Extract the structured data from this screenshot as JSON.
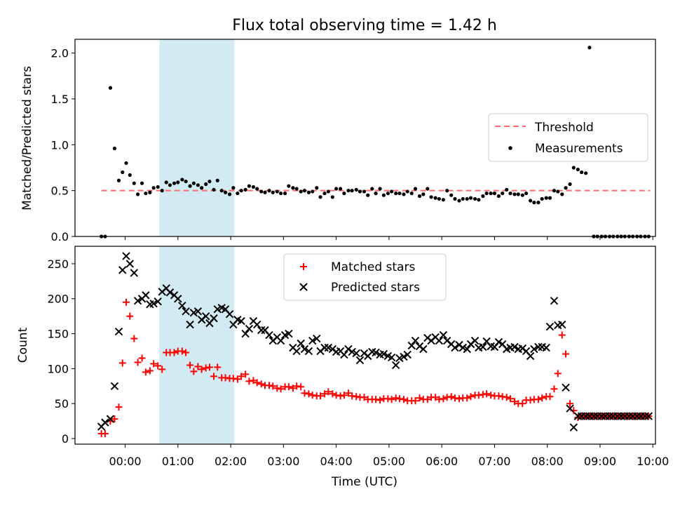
{
  "chart_data": [
    {
      "type": "scatter",
      "title": "Flux total observing time = 1.42 h",
      "xlabel": "",
      "ylabel": "Matched/Predicted stars",
      "xlim_hours": [
        -0.95,
        10.05
      ],
      "ylim": [
        0,
        2.15
      ],
      "yticks": [
        0.0,
        0.5,
        1.0,
        1.5,
        2.0
      ],
      "ytick_labels": [
        "0.0",
        "0.5",
        "1.0",
        "1.5",
        "2.0"
      ],
      "shaded_interval_hours": [
        0.65,
        2.07
      ],
      "shade_color": "#add8e6",
      "threshold": {
        "y": 0.5,
        "x_range_hours": [
          -0.45,
          9.95
        ],
        "color": "#ff6b6b"
      },
      "legend": {
        "position": "center-right",
        "entries": [
          "Threshold",
          "Measurements"
        ]
      },
      "series": [
        {
          "name": "Measurements",
          "color": "#000000",
          "x_hours": [
            -0.45,
            -0.38,
            -0.28,
            -0.2,
            -0.12,
            -0.05,
            0.02,
            0.09,
            0.17,
            0.24,
            0.32,
            0.39,
            0.47,
            0.54,
            0.62,
            0.7,
            0.78,
            0.85,
            0.93,
            1.0,
            1.08,
            1.15,
            1.23,
            1.3,
            1.38,
            1.45,
            1.53,
            1.6,
            1.68,
            1.75,
            1.83,
            1.9,
            1.98,
            2.05,
            2.13,
            2.2,
            2.28,
            2.35,
            2.43,
            2.5,
            2.58,
            2.65,
            2.73,
            2.8,
            2.88,
            2.95,
            3.03,
            3.1,
            3.18,
            3.25,
            3.33,
            3.4,
            3.48,
            3.55,
            3.63,
            3.7,
            3.78,
            3.85,
            3.93,
            4.0,
            4.08,
            4.15,
            4.23,
            4.3,
            4.38,
            4.45,
            4.53,
            4.6,
            4.68,
            4.75,
            4.83,
            4.9,
            4.98,
            5.05,
            5.13,
            5.2,
            5.28,
            5.35,
            5.43,
            5.5,
            5.58,
            5.65,
            5.73,
            5.8,
            5.88,
            5.95,
            6.03,
            6.1,
            6.18,
            6.25,
            6.33,
            6.4,
            6.48,
            6.55,
            6.63,
            6.7,
            6.78,
            6.85,
            6.93,
            7.0,
            7.08,
            7.15,
            7.23,
            7.3,
            7.38,
            7.45,
            7.53,
            7.6,
            7.68,
            7.75,
            7.83,
            7.9,
            7.98,
            8.05,
            8.13,
            8.2,
            8.28,
            8.35,
            8.43,
            8.5,
            8.58,
            8.65,
            8.73,
            8.8,
            8.88,
            8.95,
            9.03,
            9.1,
            9.18,
            9.25,
            9.33,
            9.4,
            9.47,
            9.55,
            9.62,
            9.7,
            9.77,
            9.85,
            9.92
          ],
          "y": [
            0.0,
            0.0,
            1.62,
            0.96,
            0.61,
            0.7,
            0.8,
            0.67,
            0.58,
            0.46,
            0.58,
            0.47,
            0.48,
            0.53,
            0.54,
            0.5,
            0.59,
            0.56,
            0.58,
            0.59,
            0.62,
            0.6,
            0.55,
            0.58,
            0.56,
            0.53,
            0.57,
            0.6,
            0.51,
            0.61,
            0.5,
            0.48,
            0.46,
            0.53,
            0.47,
            0.5,
            0.51,
            0.55,
            0.54,
            0.52,
            0.49,
            0.48,
            0.5,
            0.48,
            0.49,
            0.47,
            0.47,
            0.55,
            0.53,
            0.52,
            0.49,
            0.5,
            0.48,
            0.49,
            0.53,
            0.43,
            0.47,
            0.49,
            0.43,
            0.52,
            0.52,
            0.47,
            0.5,
            0.5,
            0.51,
            0.49,
            0.49,
            0.45,
            0.52,
            0.47,
            0.52,
            0.45,
            0.47,
            0.49,
            0.47,
            0.47,
            0.46,
            0.49,
            0.47,
            0.52,
            0.44,
            0.46,
            0.52,
            0.43,
            0.42,
            0.41,
            0.4,
            0.5,
            0.45,
            0.41,
            0.39,
            0.41,
            0.41,
            0.42,
            0.41,
            0.4,
            0.44,
            0.47,
            0.47,
            0.47,
            0.44,
            0.47,
            0.51,
            0.47,
            0.46,
            0.46,
            0.45,
            0.47,
            0.39,
            0.37,
            0.37,
            0.41,
            0.42,
            0.42,
            0.5,
            0.49,
            0.46,
            0.53,
            0.57,
            0.75,
            0.73,
            0.7,
            0.69,
            2.06,
            0.0,
            0.0,
            0.0,
            0.0,
            0.0,
            0.0,
            0.0,
            0.0,
            0.0,
            0.0,
            0.0,
            0.0,
            0.0,
            0.0,
            0.0
          ]
        }
      ]
    },
    {
      "type": "scatter",
      "title": "",
      "xlabel": "Time (UTC)",
      "ylabel": "Count",
      "xlim_hours": [
        -0.95,
        10.05
      ],
      "ylim": [
        -8,
        275
      ],
      "yticks": [
        0,
        50,
        100,
        150,
        200,
        250
      ],
      "ytick_labels": [
        "0",
        "50",
        "100",
        "150",
        "200",
        "250"
      ],
      "xticks_hours": [
        0,
        1,
        2,
        3,
        4,
        5,
        6,
        7,
        8,
        9,
        10
      ],
      "xtick_labels": [
        "00:00",
        "01:00",
        "02:00",
        "03:00",
        "04:00",
        "05:00",
        "06:00",
        "07:00",
        "08:00",
        "09:00",
        "10:00"
      ],
      "shaded_interval_hours": [
        0.65,
        2.07
      ],
      "shade_color": "#add8e6",
      "legend": {
        "position": "top-center",
        "entries": [
          "Matched stars",
          "Predicted stars"
        ]
      },
      "series": [
        {
          "name": "Matched stars",
          "color": "#ff0000",
          "marker": "plus",
          "x_hours": [
            -0.45,
            -0.38,
            -0.28,
            -0.2,
            -0.12,
            -0.05,
            0.02,
            0.09,
            0.17,
            0.24,
            0.32,
            0.39,
            0.47,
            0.54,
            0.62,
            0.7,
            0.78,
            0.85,
            0.93,
            1.0,
            1.08,
            1.15,
            1.23,
            1.3,
            1.38,
            1.45,
            1.53,
            1.6,
            1.68,
            1.75,
            1.83,
            1.9,
            1.98,
            2.05,
            2.13,
            2.2,
            2.28,
            2.35,
            2.43,
            2.5,
            2.58,
            2.65,
            2.73,
            2.8,
            2.88,
            2.95,
            3.03,
            3.1,
            3.18,
            3.25,
            3.33,
            3.4,
            3.48,
            3.55,
            3.63,
            3.7,
            3.78,
            3.85,
            3.93,
            4.0,
            4.08,
            4.15,
            4.23,
            4.3,
            4.38,
            4.45,
            4.53,
            4.6,
            4.68,
            4.75,
            4.83,
            4.9,
            4.98,
            5.05,
            5.13,
            5.2,
            5.28,
            5.35,
            5.43,
            5.5,
            5.58,
            5.65,
            5.73,
            5.8,
            5.88,
            5.95,
            6.03,
            6.1,
            6.18,
            6.25,
            6.33,
            6.4,
            6.48,
            6.55,
            6.63,
            6.7,
            6.78,
            6.85,
            6.93,
            7.0,
            7.08,
            7.15,
            7.23,
            7.3,
            7.38,
            7.45,
            7.53,
            7.6,
            7.68,
            7.75,
            7.83,
            7.9,
            7.98,
            8.05,
            8.13,
            8.2,
            8.28,
            8.35,
            8.43,
            8.5,
            8.58,
            8.65,
            8.73,
            8.8,
            8.88,
            8.95,
            9.03,
            9.1,
            9.18,
            9.25,
            9.33,
            9.4,
            9.47,
            9.55,
            9.62,
            9.7,
            9.77,
            9.85,
            9.92
          ],
          "y": [
            7,
            7,
            25,
            28,
            45,
            108,
            195,
            175,
            143,
            109,
            115,
            95,
            97,
            107,
            104,
            99,
            123,
            123,
            123,
            125,
            125,
            123,
            105,
            96,
            103,
            99,
            101,
            102,
            89,
            102,
            87,
            87,
            86,
            86,
            85,
            89,
            92,
            82,
            83,
            80,
            78,
            76,
            76,
            75,
            72,
            71,
            74,
            74,
            72,
            75,
            74,
            65,
            64,
            62,
            61,
            61,
            64,
            67,
            64,
            62,
            61,
            62,
            65,
            61,
            60,
            59,
            59,
            56,
            56,
            56,
            55,
            57,
            57,
            56,
            58,
            57,
            56,
            54,
            54,
            54,
            58,
            56,
            56,
            59,
            59,
            56,
            57,
            59,
            60,
            58,
            57,
            58,
            58,
            60,
            62,
            62,
            63,
            64,
            62,
            61,
            61,
            60,
            59,
            57,
            53,
            50,
            50,
            55,
            55,
            56,
            56,
            58,
            60,
            60,
            71,
            93,
            148,
            121,
            50,
            40,
            30,
            32,
            32,
            32,
            32,
            32,
            32,
            32,
            32,
            32,
            32,
            32,
            32,
            32,
            32,
            32,
            32,
            32,
            32
          ]
        },
        {
          "name": "Predicted stars",
          "color": "#000000",
          "marker": "x",
          "x_hours": [
            -0.45,
            -0.38,
            -0.28,
            -0.2,
            -0.12,
            -0.05,
            0.02,
            0.09,
            0.17,
            0.24,
            0.32,
            0.39,
            0.47,
            0.54,
            0.62,
            0.7,
            0.78,
            0.85,
            0.93,
            1.0,
            1.08,
            1.15,
            1.23,
            1.3,
            1.38,
            1.45,
            1.53,
            1.6,
            1.68,
            1.75,
            1.83,
            1.9,
            1.98,
            2.05,
            2.13,
            2.2,
            2.28,
            2.35,
            2.43,
            2.5,
            2.58,
            2.65,
            2.73,
            2.8,
            2.88,
            2.95,
            3.03,
            3.1,
            3.18,
            3.25,
            3.33,
            3.4,
            3.48,
            3.55,
            3.63,
            3.7,
            3.78,
            3.85,
            3.93,
            4.0,
            4.08,
            4.15,
            4.23,
            4.3,
            4.38,
            4.45,
            4.53,
            4.6,
            4.68,
            4.75,
            4.83,
            4.9,
            4.98,
            5.05,
            5.13,
            5.2,
            5.28,
            5.35,
            5.43,
            5.5,
            5.58,
            5.65,
            5.73,
            5.8,
            5.88,
            5.95,
            6.03,
            6.1,
            6.18,
            6.25,
            6.33,
            6.4,
            6.48,
            6.55,
            6.63,
            6.7,
            6.78,
            6.85,
            6.93,
            7.0,
            7.08,
            7.15,
            7.23,
            7.3,
            7.38,
            7.45,
            7.53,
            7.6,
            7.68,
            7.75,
            7.83,
            7.9,
            7.98,
            8.05,
            8.13,
            8.2,
            8.28,
            8.35,
            8.43,
            8.5,
            8.58,
            8.65,
            8.73,
            8.8,
            8.88,
            8.95,
            9.03,
            9.1,
            9.18,
            9.25,
            9.33,
            9.4,
            9.47,
            9.55,
            9.62,
            9.7,
            9.77,
            9.85,
            9.92
          ],
          "y": [
            17,
            23,
            28,
            75,
            153,
            241,
            261,
            250,
            237,
            197,
            200,
            205,
            192,
            193,
            196,
            210,
            215,
            209,
            205,
            200,
            190,
            182,
            163,
            180,
            182,
            170,
            175,
            165,
            172,
            185,
            187,
            185,
            178,
            163,
            170,
            168,
            150,
            157,
            168,
            163,
            155,
            155,
            148,
            140,
            145,
            140,
            148,
            150,
            130,
            125,
            136,
            128,
            125,
            140,
            143,
            125,
            130,
            130,
            128,
            124,
            125,
            120,
            128,
            124,
            122,
            112,
            122,
            118,
            124,
            123,
            120,
            121,
            118,
            116,
            105,
            115,
            117,
            120,
            133,
            140,
            132,
            128,
            144,
            140,
            145,
            140,
            148,
            140,
            135,
            130,
            134,
            130,
            128,
            135,
            140,
            130,
            131,
            139,
            132,
            131,
            138,
            135,
            128,
            130,
            131,
            128,
            129,
            125,
            118,
            128,
            131,
            131,
            130,
            160,
            197,
            162,
            163,
            73,
            43,
            16,
            32,
            32,
            32,
            32,
            32,
            32,
            32,
            32,
            32,
            32,
            32,
            32,
            32,
            32,
            32,
            32,
            32,
            32,
            32
          ]
        }
      ]
    }
  ]
}
